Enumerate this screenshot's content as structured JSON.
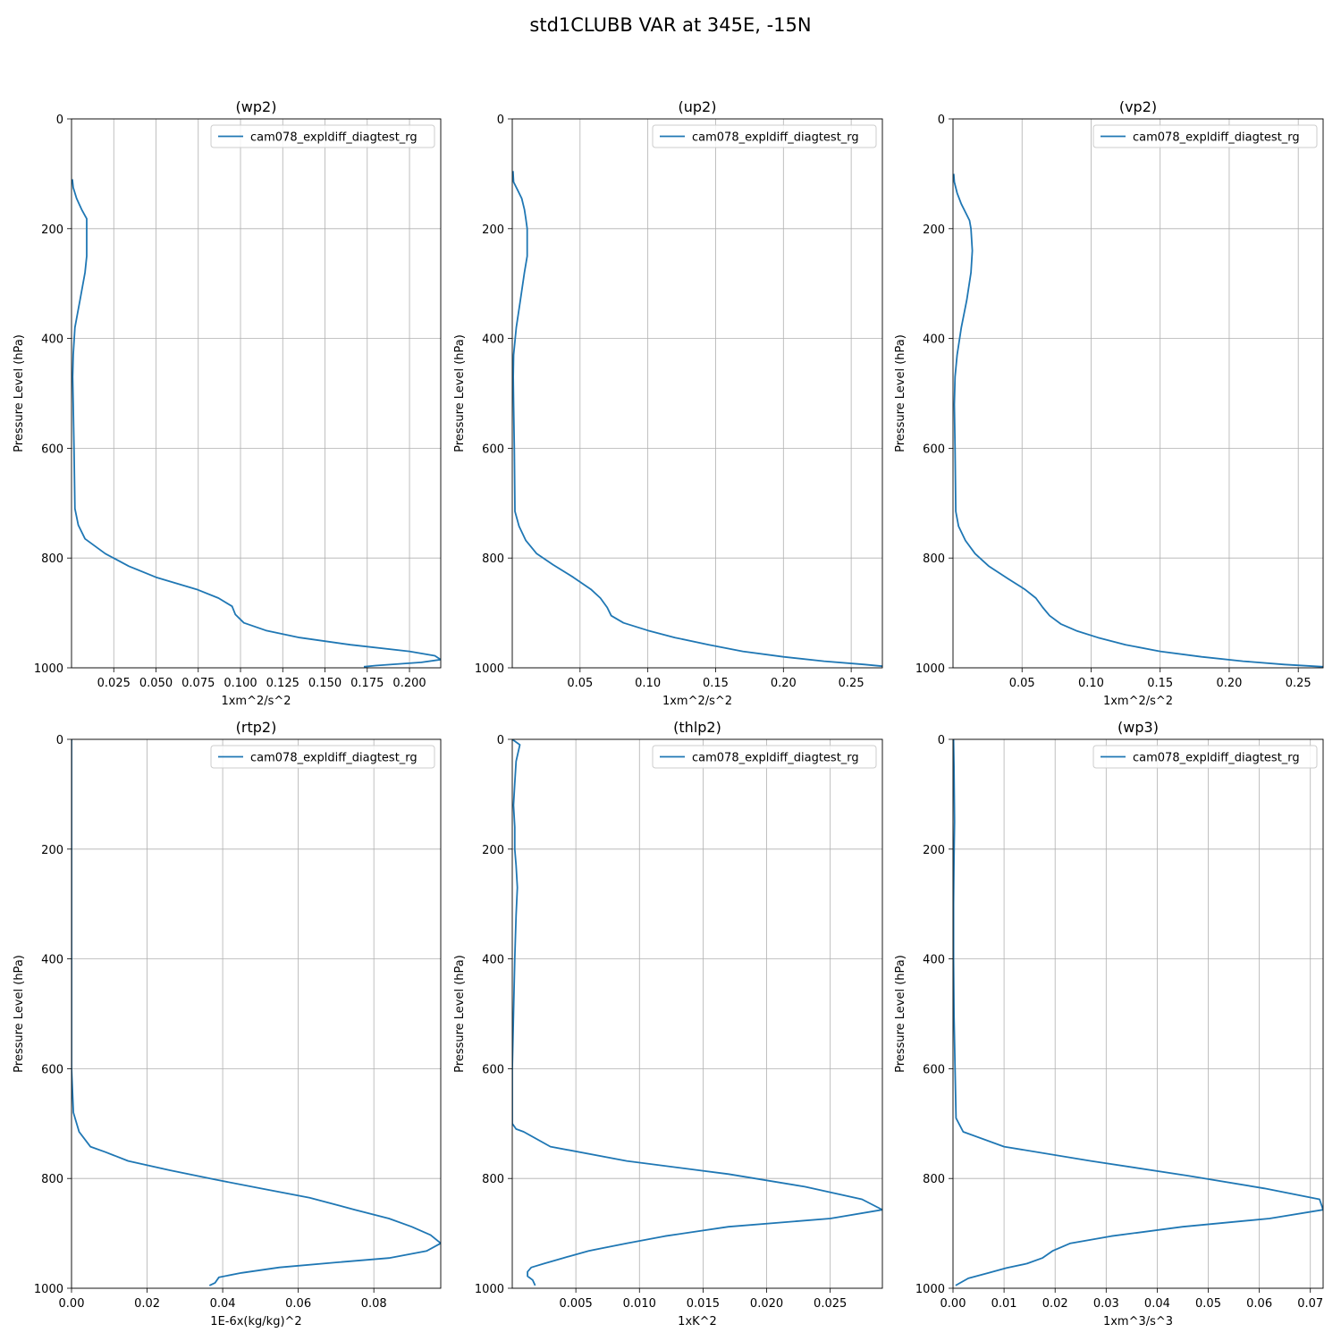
{
  "figure": {
    "title": "std1CLUBB VAR at 345E, -15N",
    "line_color": "#1f77b4"
  },
  "chart_data": [
    {
      "type": "line",
      "title": "(wp2)",
      "xlabel": "1xm^2/s^2",
      "ylabel": "Pressure Level (hPa)",
      "legend": "cam078_expldiff_diagtest_rg",
      "legend_position": "top-right",
      "grid": true,
      "xlim": [
        0.0,
        0.2185
      ],
      "ylim": [
        1000,
        0
      ],
      "xticks": [
        0.025,
        0.05,
        0.075,
        0.1,
        0.125,
        0.15,
        0.175,
        0.2
      ],
      "xtick_labels": [
        "0.025",
        "0.050",
        "0.075",
        "0.100",
        "0.125",
        "0.150",
        "0.175",
        "0.200"
      ],
      "yticks": [
        0,
        200,
        400,
        600,
        800,
        1000
      ],
      "ytick_labels": [
        "0",
        "200",
        "400",
        "600",
        "800",
        "1000"
      ],
      "x": [
        0.0005,
        0.001,
        0.003,
        0.006,
        0.009,
        0.009,
        0.009,
        0.008,
        0.005,
        0.002,
        0.001,
        0.0007,
        0.001,
        0.0015,
        0.002,
        0.004,
        0.008,
        0.02,
        0.034,
        0.05,
        0.074,
        0.087,
        0.095,
        0.097,
        0.102,
        0.115,
        0.135,
        0.165,
        0.2,
        0.215,
        0.2185,
        0.207,
        0.18,
        0.173
      ],
      "y": [
        110,
        125,
        145,
        165,
        182,
        200,
        250,
        280,
        330,
        380,
        430,
        470,
        520,
        600,
        710,
        740,
        765,
        792,
        815,
        835,
        857,
        873,
        888,
        903,
        918,
        932,
        945,
        958,
        970,
        978,
        985,
        990,
        996,
        998
      ]
    },
    {
      "type": "line",
      "title": "(up2)",
      "xlabel": "1xm^2/s^2",
      "ylabel": "Pressure Level (hPa)",
      "legend": "cam078_expldiff_diagtest_rg",
      "legend_position": "top-right",
      "grid": true,
      "xlim": [
        0.0,
        0.273
      ],
      "ylim": [
        1000,
        0
      ],
      "xticks": [
        0.05,
        0.1,
        0.15,
        0.2,
        0.25
      ],
      "xtick_labels": [
        "0.05",
        "0.10",
        "0.15",
        "0.20",
        "0.25"
      ],
      "yticks": [
        0,
        200,
        400,
        600,
        800,
        1000
      ],
      "ytick_labels": [
        "0",
        "200",
        "400",
        "600",
        "800",
        "1000"
      ],
      "x": [
        0.0005,
        0.001,
        0.004,
        0.007,
        0.009,
        0.01,
        0.011,
        0.011,
        0.009,
        0.006,
        0.003,
        0.001,
        0.0007,
        0.001,
        0.0015,
        0.002,
        0.005,
        0.01,
        0.018,
        0.03,
        0.045,
        0.058,
        0.065,
        0.07,
        0.073,
        0.082,
        0.1,
        0.12,
        0.145,
        0.17,
        0.2,
        0.23,
        0.26,
        0.273
      ],
      "y": [
        95,
        115,
        130,
        145,
        165,
        182,
        200,
        250,
        280,
        330,
        380,
        430,
        470,
        520,
        600,
        715,
        742,
        768,
        792,
        812,
        835,
        857,
        873,
        890,
        905,
        918,
        932,
        945,
        958,
        970,
        980,
        988,
        994,
        997
      ]
    },
    {
      "type": "line",
      "title": "(vp2)",
      "xlabel": "1xm^2/s^2",
      "ylabel": "Pressure Level (hPa)",
      "legend": "cam078_expldiff_diagtest_rg",
      "legend_position": "top-right",
      "grid": true,
      "xlim": [
        0.0,
        0.268
      ],
      "ylim": [
        1000,
        0
      ],
      "xticks": [
        0.05,
        0.1,
        0.15,
        0.2,
        0.25
      ],
      "xtick_labels": [
        "0.05",
        "0.10",
        "0.15",
        "0.20",
        "0.25"
      ],
      "yticks": [
        0,
        200,
        400,
        600,
        800,
        1000
      ],
      "ytick_labels": [
        "0",
        "200",
        "400",
        "600",
        "800",
        "1000"
      ],
      "x": [
        0.0005,
        0.001,
        0.003,
        0.006,
        0.009,
        0.012,
        0.013,
        0.014,
        0.013,
        0.01,
        0.006,
        0.003,
        0.0015,
        0.001,
        0.0015,
        0.002,
        0.004,
        0.009,
        0.016,
        0.026,
        0.04,
        0.052,
        0.06,
        0.065,
        0.07,
        0.078,
        0.09,
        0.105,
        0.125,
        0.15,
        0.18,
        0.21,
        0.24,
        0.268
      ],
      "y": [
        100,
        115,
        135,
        155,
        170,
        185,
        200,
        240,
        280,
        330,
        380,
        430,
        470,
        520,
        600,
        715,
        742,
        768,
        792,
        815,
        838,
        857,
        873,
        890,
        905,
        920,
        933,
        945,
        958,
        970,
        980,
        988,
        994,
        998
      ]
    },
    {
      "type": "line",
      "title": "(rtp2)",
      "xlabel": "1E-6x(kg/kg)^2",
      "ylabel": "Pressure Level (hPa)",
      "legend": "cam078_expldiff_diagtest_rg",
      "legend_position": "top-right",
      "grid": true,
      "xlim": [
        0.0,
        0.0977
      ],
      "ylim": [
        1000,
        0
      ],
      "xticks": [
        0.0,
        0.02,
        0.04,
        0.06,
        0.08
      ],
      "xtick_labels": [
        "0.00",
        "0.02",
        "0.04",
        "0.06",
        "0.08"
      ],
      "yticks": [
        0,
        200,
        400,
        600,
        800,
        1000
      ],
      "ytick_labels": [
        "0",
        "200",
        "400",
        "600",
        "800",
        "1000"
      ],
      "x": [
        0.0,
        0.0,
        0.0,
        0.0005,
        0.002,
        0.005,
        0.009,
        0.015,
        0.026,
        0.038,
        0.05,
        0.063,
        0.075,
        0.084,
        0.09,
        0.095,
        0.0977,
        0.094,
        0.084,
        0.07,
        0.055,
        0.045,
        0.039,
        0.038,
        0.0365
      ],
      "y": [
        0,
        400,
        600,
        680,
        715,
        742,
        752,
        768,
        785,
        802,
        818,
        835,
        857,
        873,
        888,
        903,
        918,
        932,
        945,
        953,
        962,
        972,
        980,
        990,
        995
      ]
    },
    {
      "type": "line",
      "title": "(thlp2)",
      "xlabel": "1xK^2",
      "ylabel": "Pressure Level (hPa)",
      "legend": "cam078_expldiff_diagtest_rg",
      "legend_position": "top-right",
      "grid": true,
      "xlim": [
        0.0,
        0.0291
      ],
      "ylim": [
        1000,
        0
      ],
      "xticks": [
        0.005,
        0.01,
        0.015,
        0.02,
        0.025
      ],
      "xtick_labels": [
        "0.005",
        "0.010",
        "0.015",
        "0.020",
        "0.025"
      ],
      "yticks": [
        0,
        200,
        400,
        600,
        800,
        1000
      ],
      "ytick_labels": [
        "0",
        "200",
        "400",
        "600",
        "800",
        "1000"
      ],
      "x": [
        0.0,
        0.0006,
        0.0003,
        0.0002,
        0.0001,
        0.0002,
        0.0002,
        0.0003,
        0.0004,
        0.0003,
        0.0002,
        0.0001,
        0.0,
        0.0,
        0.0,
        0.0,
        0.0003,
        0.0009,
        0.003,
        0.009,
        0.017,
        0.023,
        0.0275,
        0.0291,
        0.025,
        0.017,
        0.012,
        0.009,
        0.006,
        0.004,
        0.0025,
        0.0015,
        0.0012,
        0.0012,
        0.0016,
        0.0018
      ],
      "y": [
        0,
        10,
        40,
        80,
        120,
        160,
        200,
        230,
        270,
        320,
        400,
        500,
        600,
        680,
        690,
        700,
        710,
        715,
        742,
        768,
        792,
        815,
        838,
        857,
        873,
        888,
        905,
        918,
        932,
        945,
        955,
        962,
        970,
        978,
        985,
        995
      ]
    },
    {
      "type": "line",
      "title": "(wp3)",
      "xlabel": "1xm^3/s^3",
      "ylabel": "Pressure Level (hPa)",
      "legend": "cam078_expldiff_diagtest_rg",
      "legend_position": "top-right",
      "grid": true,
      "xlim": [
        0.0,
        0.0725
      ],
      "ylim": [
        1000,
        0
      ],
      "xticks": [
        0.0,
        0.01,
        0.02,
        0.03,
        0.04,
        0.05,
        0.06,
        0.07
      ],
      "xtick_labels": [
        "0.00",
        "0.01",
        "0.02",
        "0.03",
        "0.04",
        "0.05",
        "0.06",
        "0.07"
      ],
      "yticks": [
        0,
        200,
        400,
        600,
        800,
        1000
      ],
      "ytick_labels": [
        "0",
        "200",
        "400",
        "600",
        "800",
        "1000"
      ],
      "x": [
        0.0001,
        0.0002,
        0.0003,
        0.0002,
        0.0001,
        0.0001,
        0.0002,
        0.0006,
        0.002,
        0.01,
        0.027,
        0.046,
        0.061,
        0.0718,
        0.0725,
        0.062,
        0.045,
        0.031,
        0.023,
        0.0195,
        0.0175,
        0.0145,
        0.0105,
        0.007,
        0.003,
        0.0005
      ],
      "y": [
        0,
        50,
        150,
        220,
        300,
        400,
        500,
        690,
        715,
        742,
        768,
        795,
        818,
        838,
        857,
        873,
        888,
        905,
        918,
        932,
        945,
        955,
        963,
        972,
        982,
        995
      ]
    }
  ]
}
